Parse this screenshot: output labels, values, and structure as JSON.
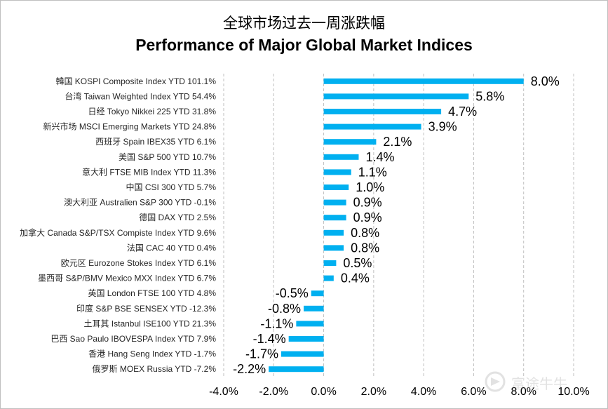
{
  "chart_data": {
    "type": "bar",
    "orientation": "horizontal",
    "title": "全球市场过去一周涨跌幅",
    "subtitle": "Performance of Major Global Market Indices",
    "categories": [
      "韓国 KOSPI Composite Index YTD 101.1%",
      "台湾 Taiwan Weighted Index YTD 54.4%",
      "日经 Tokyo Nikkei 225  YTD 31.8%",
      "新兴市场 MSCI Emerging Markets YTD 24.8%",
      "西班牙 Spain IBEX35 YTD 6.1%",
      "美国 S&P 500  YTD 10.7%",
      "意大利 FTSE MIB Index YTD 11.3%",
      "中国 CSI 300 YTD 5.7%",
      "澳大利亚 Australien S&P 300 YTD -0.1%",
      "德国 DAX YTD 2.5%",
      "加拿大 Canada S&P/TSX Compiste Index YTD 9.6%",
      "法国 CAC 40  YTD 0.4%",
      "欧元区 Eurozone Stokes Index YTD 6.1%",
      "墨西哥 S&P/BMV Mexico MXX Index YTD 6.7%",
      "英国 London FTSE 100 YTD 4.8%",
      "印度 S&P BSE SENSEX YTD -12.3%",
      "土耳其 Istanbul ISE100 YTD 21.3%",
      "巴西 Sao Paulo IBOVESPA Index YTD 7.9%",
      "香港 Hang Seng Index YTD -1.7%",
      "俄罗斯 MOEX Russia  YTD -7.2%"
    ],
    "values": [
      8.0,
      5.8,
      4.7,
      3.9,
      2.1,
      1.4,
      1.1,
      1.0,
      0.9,
      0.9,
      0.8,
      0.8,
      0.5,
      0.4,
      -0.5,
      -0.8,
      -1.1,
      -1.4,
      -1.7,
      -2.2
    ],
    "data_labels": [
      "8.0%",
      "5.8%",
      "4.7%",
      "3.9%",
      "2.1%",
      "1.4%",
      "1.1%",
      "1.0%",
      "0.9%",
      "0.9%",
      "0.8%",
      "0.8%",
      "0.5%",
      "0.4%",
      "-0.5%",
      "-0.8%",
      "-1.1%",
      "-1.4%",
      "-1.7%",
      "-2.2%"
    ],
    "xlim": [
      -4.0,
      10.0
    ],
    "xticks": [
      -4.0,
      -2.0,
      0.0,
      2.0,
      4.0,
      6.0,
      8.0,
      10.0
    ],
    "xtick_labels": [
      "-4.0%",
      "-2.0%",
      "0.0%",
      "2.0%",
      "4.0%",
      "6.0%",
      "8.0%",
      "10.0%"
    ],
    "grid": "vertical dashed",
    "legend": "none",
    "bar_color": "#00B0F0",
    "grid_color": "#bfbfbf"
  },
  "watermark": {
    "text": "富途牛牛",
    "icon": "futu-logo-icon"
  }
}
